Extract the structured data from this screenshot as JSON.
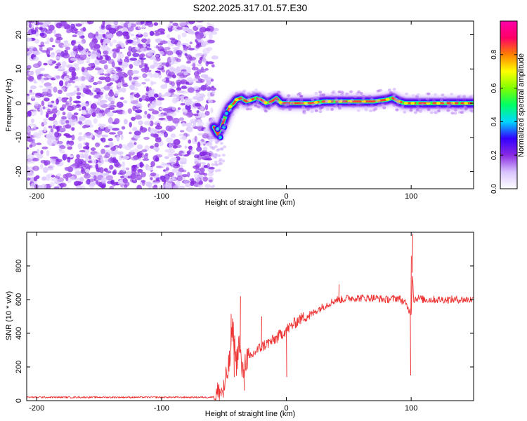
{
  "title": "S202.2025.317.01.57.E30",
  "chart_data": [
    {
      "type": "heatmap",
      "xlabel": "Height of straight line (km)",
      "ylabel": "Frequency (Hz)",
      "xlim": [
        -208,
        150
      ],
      "ylim": [
        -25,
        24
      ],
      "xticks": [
        -200,
        -100,
        0,
        100
      ],
      "yticks": [
        -20,
        -10,
        0,
        10,
        20
      ],
      "xtick_labels": [
        "-200",
        "-100",
        "0",
        "100"
      ],
      "ytick_labels": [
        "-20",
        "-10",
        "0",
        "10",
        "20"
      ],
      "colorbar": {
        "label": "Normalized spectral amplitude",
        "range": [
          0,
          1
        ],
        "ticks": [
          0.0,
          0.2,
          0.4,
          0.6,
          0.8
        ],
        "tick_labels": [
          "0.0",
          "0.2",
          "0.4",
          "0.6",
          "0.8"
        ],
        "colormap": [
          "#ffffff",
          "#d9c3ff",
          "#8a2be2",
          "#3300ff",
          "#00d8ff",
          "#00ff66",
          "#80ff00",
          "#ffff00",
          "#ff8000",
          "#ff0066",
          "#ff00aa"
        ]
      },
      "noise_region_km": [
        -208,
        -58
      ],
      "noise_amplitude": 0.2,
      "ridge_amplitude": 0.85,
      "ridge": {
        "x": [
          -58,
          -55,
          -52,
          -50,
          -48,
          -45,
          -42,
          -40,
          -36,
          -32,
          -28,
          -24,
          -20,
          -16,
          -12,
          -8,
          -4,
          0,
          5,
          10,
          20,
          30,
          40,
          50,
          60,
          70,
          80,
          85,
          90,
          95,
          100,
          110,
          120,
          130,
          140,
          150
        ],
        "y": [
          -7,
          -9,
          -7,
          -5,
          -3,
          -1,
          0,
          1,
          1.5,
          0.5,
          1,
          1.5,
          1,
          0,
          0.5,
          1.5,
          0,
          0,
          0,
          0,
          0,
          0.5,
          0.5,
          0.5,
          0.5,
          0.5,
          1,
          1.5,
          0.5,
          0,
          0,
          0,
          0,
          0,
          0,
          0
        ]
      }
    },
    {
      "type": "line",
      "xlabel": "Height of straight line (km)",
      "ylabel": "SNR (10 * v/v)",
      "xlim": [
        -208,
        150
      ],
      "ylim": [
        0,
        1000
      ],
      "xticks": [
        -200,
        -100,
        0,
        100
      ],
      "yticks": [
        0,
        200,
        400,
        600,
        800
      ],
      "xtick_labels": [
        "-200",
        "-100",
        "0",
        "100"
      ],
      "ytick_labels": [
        "0",
        "200",
        "400",
        "600",
        "800"
      ],
      "color": "#ee3333",
      "series": [
        {
          "name": "SNR",
          "x": [
            -208,
            -100,
            -60,
            -50,
            -45,
            -43,
            -40,
            -38,
            -35,
            -32,
            -30,
            -25,
            -20,
            -15,
            -10,
            -5,
            0,
            5,
            10,
            15,
            20,
            25,
            30,
            35,
            40,
            45,
            50,
            60,
            70,
            80,
            90,
            95,
            99,
            100,
            101,
            102,
            105,
            110,
            120,
            130,
            140,
            150
          ],
          "values": [
            20,
            20,
            20,
            60,
            250,
            440,
            220,
            350,
            150,
            260,
            240,
            290,
            320,
            340,
            360,
            390,
            420,
            450,
            480,
            500,
            510,
            540,
            560,
            580,
            600,
            600,
            610,
            610,
            610,
            600,
            610,
            580,
            530,
            520,
            760,
            600,
            610,
            600,
            600,
            600,
            600,
            600
          ]
        }
      ],
      "spikes": [
        {
          "x": -44.5,
          "value": 515
        },
        {
          "x": -42,
          "value": 140
        },
        {
          "x": -37,
          "value": 620
        },
        {
          "x": -34,
          "value": 60
        },
        {
          "x": -20,
          "value": 500
        },
        {
          "x": 0,
          "value": 140
        },
        {
          "x": 42,
          "value": 690
        },
        {
          "x": 99.3,
          "value": 150
        },
        {
          "x": 99.8,
          "value": 860
        },
        {
          "x": 101,
          "value": 990
        }
      ]
    }
  ]
}
